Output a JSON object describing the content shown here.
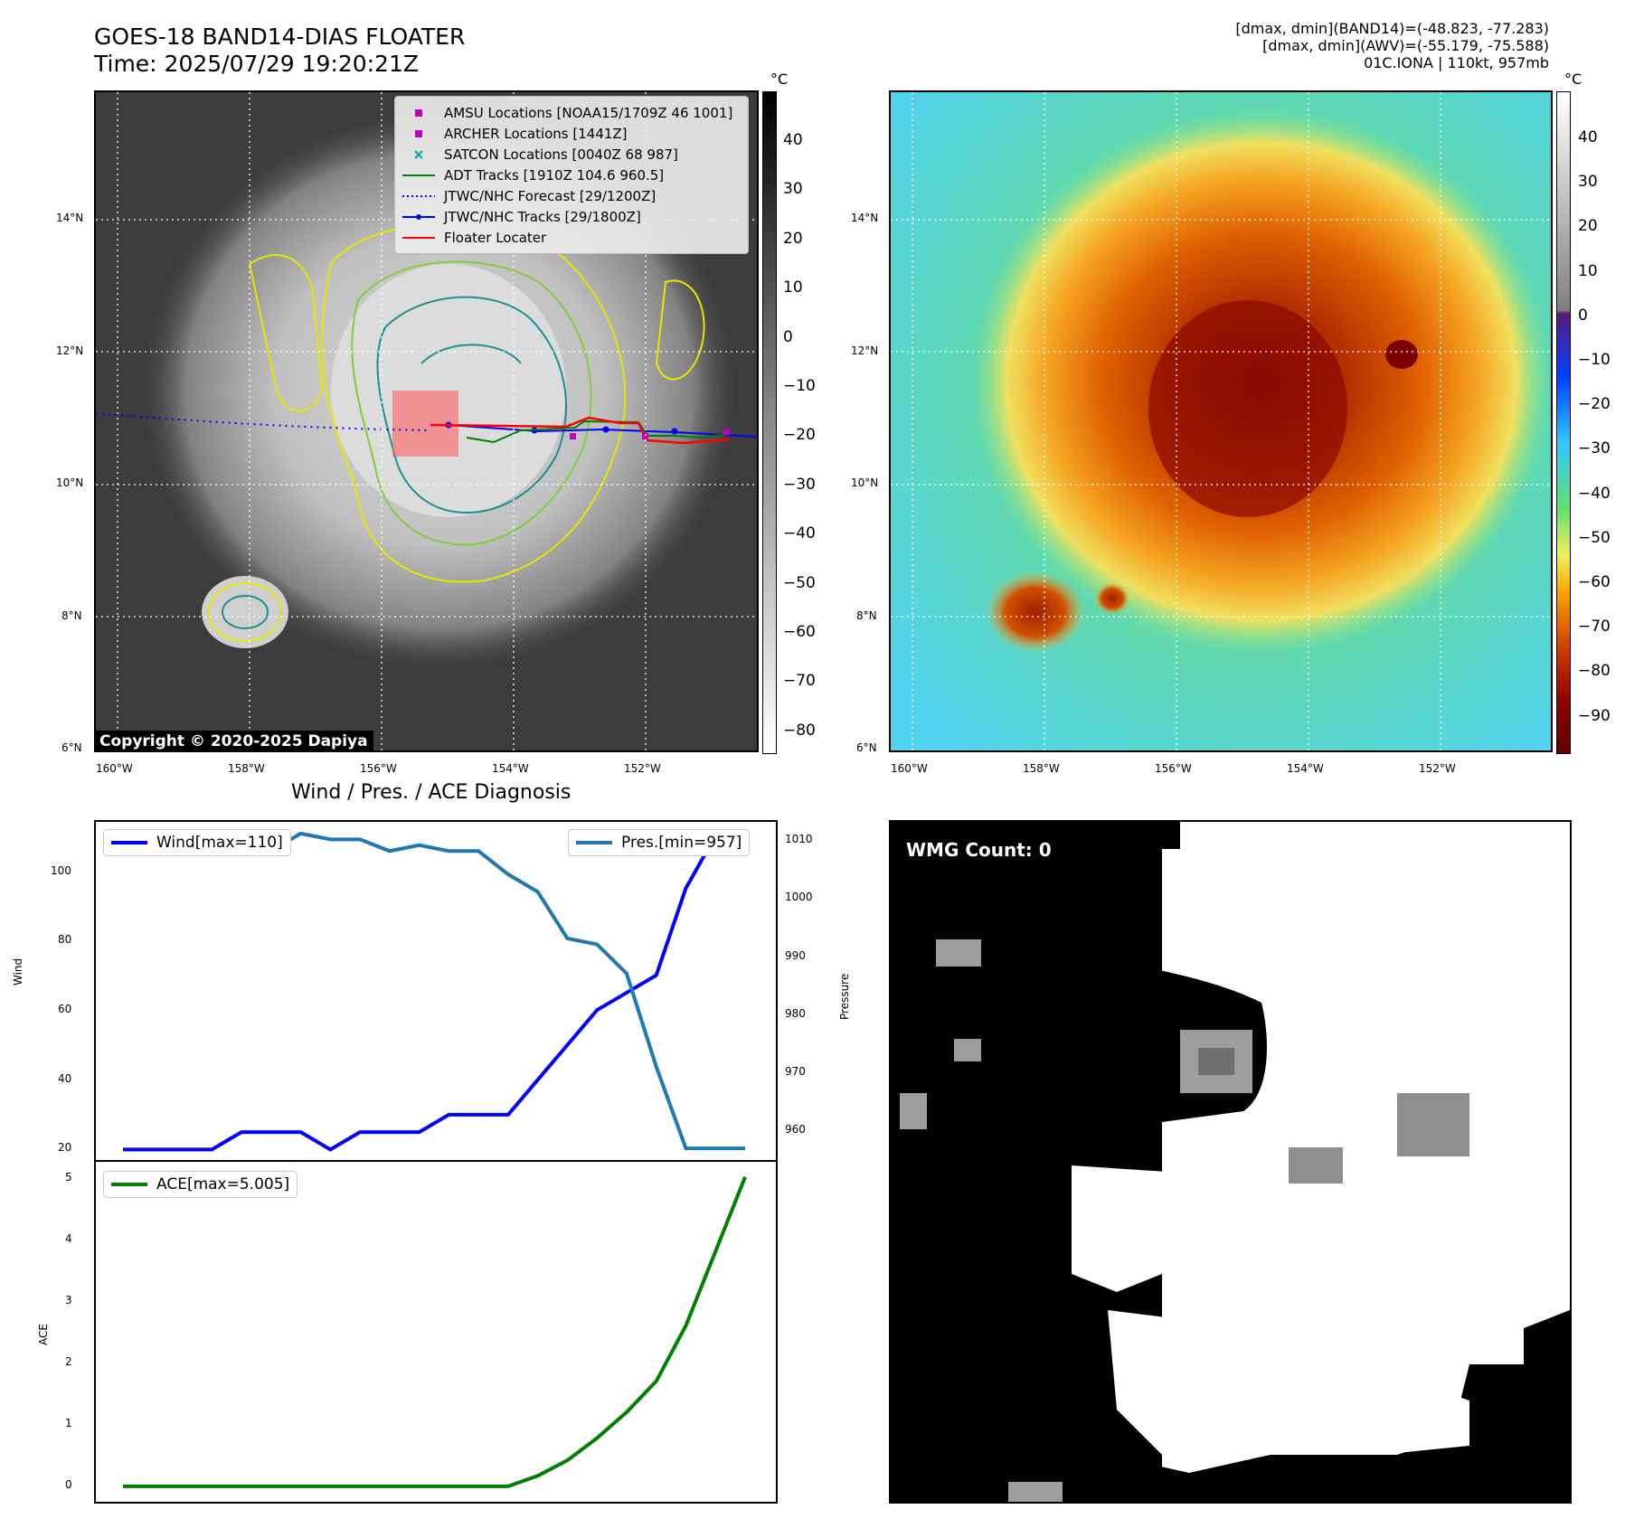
{
  "header": {
    "title_line1": "GOES-18 BAND14-DIAS FLOATER",
    "title_line2": "Time: 2025/07/29 19:20:21Z",
    "stats_line1": "[dmax, dmin](BAND14)=(-48.823, -77.283)",
    "stats_line2": "[dmax, dmin](AWV)=(-55.179, -75.588)",
    "stats_line3": "01C.IONA | 110kt, 957mb"
  },
  "map": {
    "lat_labels": [
      "14°N",
      "12°N",
      "10°N",
      "8°N",
      "6°N"
    ],
    "lon_labels": [
      "160°W",
      "158°W",
      "156°W",
      "154°W",
      "152°W"
    ],
    "copyright": "Copyright © 2020-2025 Dapiya",
    "unit": "°C",
    "colorbar_left_ticks": [
      "40",
      "30",
      "20",
      "10",
      "0",
      "−10",
      "−20",
      "−30",
      "−40",
      "−50",
      "−60",
      "−70",
      "−80"
    ],
    "colorbar_right_ticks": [
      "40",
      "30",
      "20",
      "10",
      "0",
      "−10",
      "−20",
      "−30",
      "−40",
      "−50",
      "−60",
      "−70",
      "−80",
      "−90"
    ],
    "legend": [
      {
        "label": "AMSU Locations [NOAA15/1709Z 46 1001]",
        "color": "#c000c0",
        "marker": "square"
      },
      {
        "label": "ARCHER Locations [1441Z]",
        "color": "#c000c0",
        "marker": "square"
      },
      {
        "label": "SATCON Locations [0040Z 68 987]",
        "color": "#20b0b0",
        "marker": "x"
      },
      {
        "label": "ADT Tracks [1910Z 104.6 960.5]",
        "color": "#008000",
        "marker": "line"
      },
      {
        "label": "JTWC/NHC Forecast [29/1200Z]",
        "color": "#0000ff",
        "marker": "dotted"
      },
      {
        "label": "JTWC/NHC Tracks [29/1800Z]",
        "color": "#0000ff",
        "marker": "line-dot"
      },
      {
        "label": "Floater Locater",
        "color": "#ff0000",
        "marker": "line"
      }
    ]
  },
  "diagnosis": {
    "title": "Wind / Pres. / ACE Diagnosis",
    "wind_axis_label": "Wind",
    "pressure_axis_label": "Pressure",
    "ace_axis_label": "ACE",
    "wind_legend": "Wind[max=110]",
    "pres_legend": "Pres.[min=957]",
    "ace_legend": "ACE[max=5.005]",
    "wind_ticks": [
      "100",
      "80",
      "60",
      "40",
      "20"
    ],
    "pres_ticks": [
      "1010",
      "1000",
      "990",
      "980",
      "970",
      "960"
    ],
    "ace_ticks": [
      "5",
      "4",
      "3",
      "2",
      "1",
      "0"
    ]
  },
  "wmg": {
    "label": "WMG Count: 0"
  },
  "chart_data": [
    {
      "type": "line",
      "title": "Wind / Pres. / ACE Diagnosis",
      "x": [
        0,
        1,
        2,
        3,
        4,
        5,
        6,
        7,
        8,
        9,
        10,
        11,
        12,
        13,
        14,
        15,
        16,
        17,
        18,
        19,
        20,
        21
      ],
      "series": [
        {
          "name": "Wind[max=110]",
          "axis": "left",
          "color": "#0000ff",
          "values": [
            20,
            20,
            20,
            20,
            25,
            25,
            25,
            20,
            25,
            25,
            25,
            30,
            30,
            30,
            40,
            50,
            60,
            65,
            70,
            95,
            110,
            110
          ]
        },
        {
          "name": "Pres.[min=957]",
          "axis": "right",
          "color": "#1f77b4",
          "values": [
            1010,
            1010,
            1010,
            1009,
            1008,
            1008,
            1011,
            1010,
            1010,
            1008,
            1009,
            1008,
            1008,
            1004,
            1001,
            993,
            992,
            987,
            971,
            957,
            957,
            957
          ]
        }
      ],
      "ylabel": "Wind",
      "ylim": [
        17,
        114
      ],
      "ylabel_right": "Pressure",
      "ylim_right": [
        955,
        1013
      ]
    },
    {
      "type": "line",
      "x": [
        0,
        1,
        2,
        3,
        4,
        5,
        6,
        7,
        8,
        9,
        10,
        11,
        12,
        13,
        14,
        15,
        16,
        17,
        18,
        19,
        20,
        21
      ],
      "series": [
        {
          "name": "ACE[max=5.005]",
          "color": "#008000",
          "values": [
            0,
            0,
            0,
            0,
            0,
            0,
            0,
            0,
            0,
            0,
            0,
            0,
            0,
            0,
            0.17,
            0.42,
            0.78,
            1.2,
            1.7,
            2.6,
            3.8,
            5.005
          ]
        }
      ],
      "ylabel": "ACE",
      "ylim": [
        -0.25,
        5.25
      ]
    }
  ]
}
